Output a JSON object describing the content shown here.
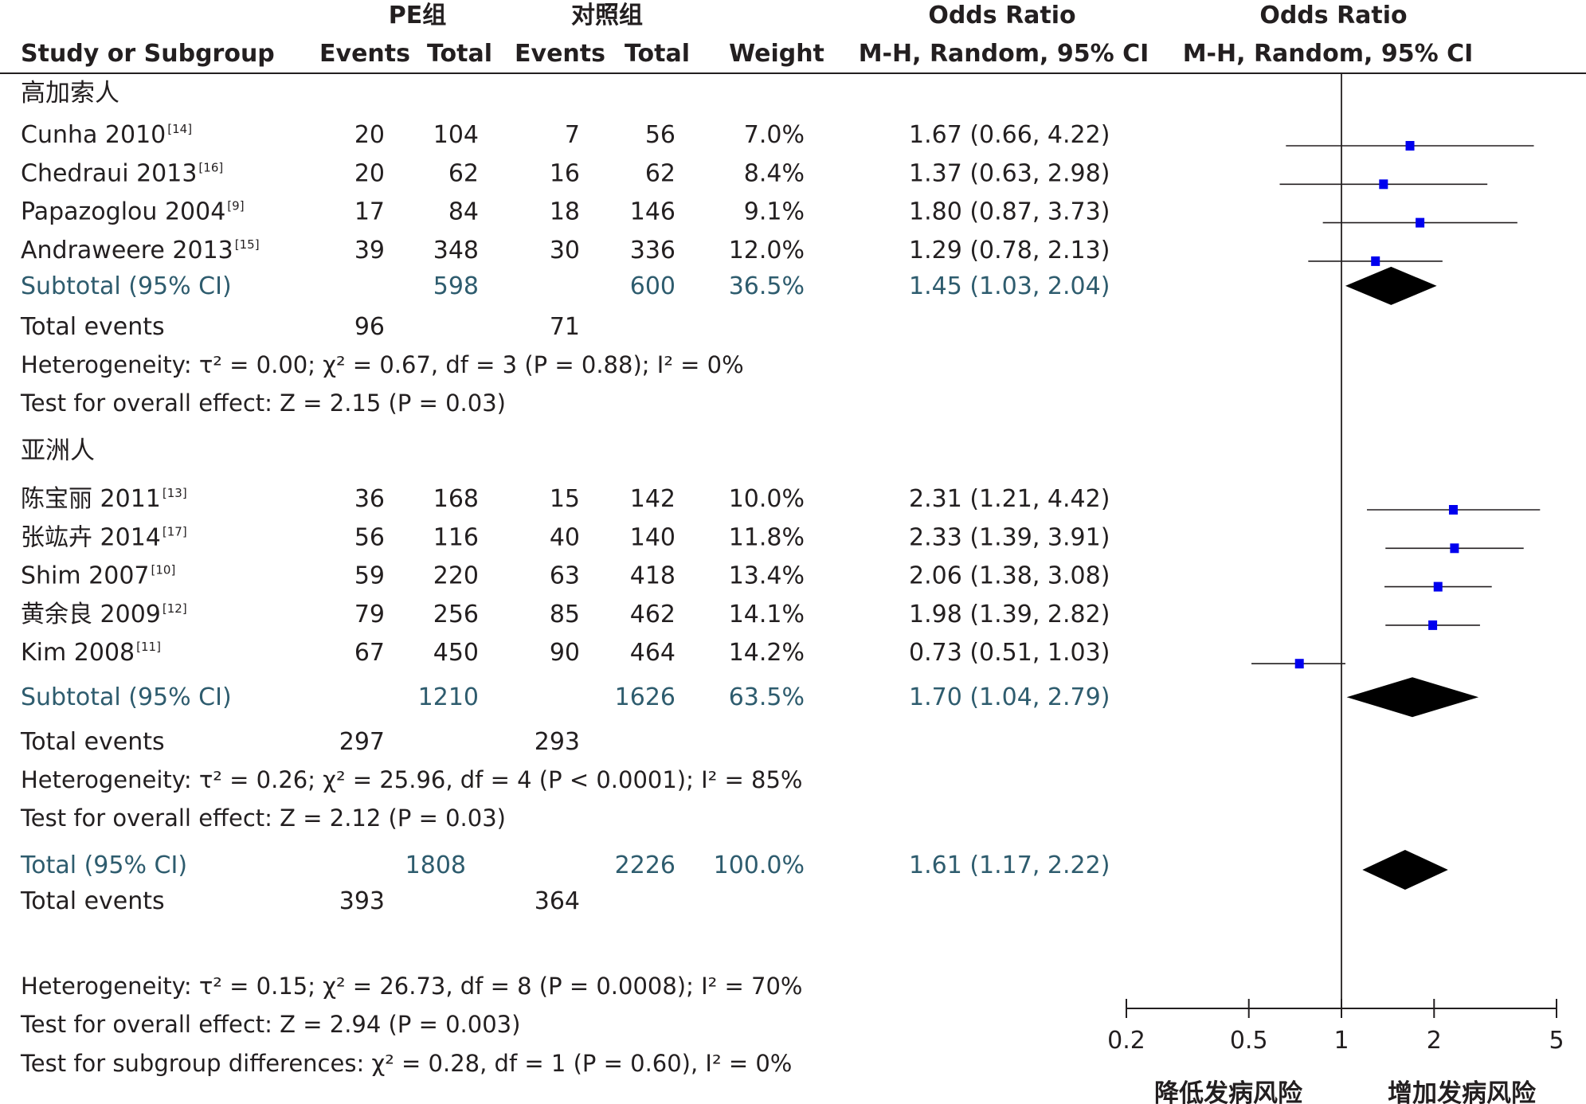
{
  "headers": {
    "group_pe": "PE组",
    "group_ctrl": "对照组",
    "or_title": "Odds Ratio",
    "plot_title": "Odds Ratio",
    "study_col": "Study or Subgroup",
    "events": "Events",
    "total": "Total",
    "weight": "Weight",
    "method": "M-H, Random, 95% CI",
    "plot_method": "M-H, Random, 95% CI"
  },
  "chart_data": {
    "type": "forest",
    "measure": "Odds Ratio (M-H, Random, 95% CI)",
    "x_scale": "log",
    "xlim": [
      0.2,
      5
    ],
    "ticks": [
      "0.2",
      "0.5",
      "1",
      "2",
      "5"
    ],
    "null_line": 1,
    "axis_left_label": "降低发病风险",
    "axis_right_label": "增加发病风险",
    "groups": [
      {
        "name": "高加索人",
        "studies": [
          {
            "name": "Cunha 2010",
            "ref": "[14]",
            "pe_events": "20",
            "pe_total": "104",
            "ctrl_events": "7",
            "ctrl_total": "56",
            "weight": "7.0%",
            "or_text": "1.67 (0.66, 4.22)",
            "or": 1.67,
            "lo": 0.66,
            "hi": 4.22
          },
          {
            "name": "Chedraui 2013",
            "ref": "[16]",
            "pe_events": "20",
            "pe_total": "62",
            "ctrl_events": "16",
            "ctrl_total": "62",
            "weight": "8.4%",
            "or_text": "1.37 (0.63, 2.98)",
            "or": 1.37,
            "lo": 0.63,
            "hi": 2.98
          },
          {
            "name": "Papazoglou 2004",
            "ref": "[9]",
            "pe_events": "17",
            "pe_total": "84",
            "ctrl_events": "18",
            "ctrl_total": "146",
            "weight": "9.1%",
            "or_text": "1.80 (0.87, 3.73)",
            "or": 1.8,
            "lo": 0.87,
            "hi": 3.73
          },
          {
            "name": "Andraweere 2013",
            "ref": "[15]",
            "pe_events": "39",
            "pe_total": "348",
            "ctrl_events": "30",
            "ctrl_total": "336",
            "weight": "12.0%",
            "or_text": "1.29 (0.78, 2.13)",
            "or": 1.29,
            "lo": 0.78,
            "hi": 2.13
          }
        ],
        "subtotal": {
          "label": "Subtotal (95% CI)",
          "pe_total": "598",
          "ctrl_total": "600",
          "weight": "36.5%",
          "or_text": "1.45 (1.03, 2.04)",
          "or": 1.45,
          "lo": 1.03,
          "hi": 2.04
        },
        "total_events": {
          "label": "Total events",
          "pe": "96",
          "ctrl": "71"
        },
        "heterogeneity": "Heterogeneity: τ² = 0.00; χ² = 0.67, df = 3 (P = 0.88); I² = 0%",
        "overall_effect": "Test for overall effect: Z = 2.15 (P = 0.03)"
      },
      {
        "name": "亚洲人",
        "studies": [
          {
            "name": "陈宝丽 2011",
            "ref": "[13]",
            "pe_events": "36",
            "pe_total": "168",
            "ctrl_events": "15",
            "ctrl_total": "142",
            "weight": "10.0%",
            "or_text": "2.31 (1.21, 4.42)",
            "or": 2.31,
            "lo": 1.21,
            "hi": 4.42
          },
          {
            "name": "张竑卉 2014",
            "ref": "[17]",
            "pe_events": "56",
            "pe_total": "116",
            "ctrl_events": "40",
            "ctrl_total": "140",
            "weight": "11.8%",
            "or_text": "2.33 (1.39, 3.91)",
            "or": 2.33,
            "lo": 1.39,
            "hi": 3.91
          },
          {
            "name": "Shim 2007",
            "ref": "[10]",
            "pe_events": "59",
            "pe_total": "220",
            "ctrl_events": "63",
            "ctrl_total": "418",
            "weight": "13.4%",
            "or_text": "2.06 (1.38, 3.08)",
            "or": 2.06,
            "lo": 1.38,
            "hi": 3.08
          },
          {
            "name": "黄余良 2009",
            "ref": "[12]",
            "pe_events": "79",
            "pe_total": "256",
            "ctrl_events": "85",
            "ctrl_total": "462",
            "weight": "14.1%",
            "or_text": "1.98 (1.39, 2.82)",
            "or": 1.98,
            "lo": 1.39,
            "hi": 2.82
          },
          {
            "name": "Kim 2008",
            "ref": "[11]",
            "pe_events": "67",
            "pe_total": "450",
            "ctrl_events": "90",
            "ctrl_total": "464",
            "weight": "14.2%",
            "or_text": "0.73 (0.51, 1.03)",
            "or": 0.73,
            "lo": 0.51,
            "hi": 1.03
          }
        ],
        "subtotal": {
          "label": "Subtotal (95% CI)",
          "pe_total": "1210",
          "ctrl_total": "1626",
          "weight": "63.5%",
          "or_text": "1.70 (1.04, 2.79)",
          "or": 1.7,
          "lo": 1.04,
          "hi": 2.79
        },
        "total_events": {
          "label": "Total events",
          "pe": "297",
          "ctrl": "293"
        },
        "heterogeneity": "Heterogeneity: τ² = 0.26; χ² = 25.96, df = 4 (P < 0.0001); I² = 85%",
        "overall_effect": "Test for overall effect: Z = 2.12 (P = 0.03)"
      }
    ],
    "overall": {
      "label": "Total (95% CI)",
      "pe_total": "1808",
      "ctrl_total": "2226",
      "weight": "100.0%",
      "or_text": "1.61 (1.17, 2.22)",
      "or": 1.61,
      "lo": 1.17,
      "hi": 2.22,
      "total_events": {
        "label": "Total events",
        "pe": "393",
        "ctrl": "364"
      },
      "heterogeneity": "Heterogeneity: τ² = 0.15; χ² = 26.73, df = 8 (P = 0.0008); I² = 70%",
      "overall_effect": "Test for overall effect: Z = 2.94 (P = 0.003)",
      "subgroup_diff": "Test for subgroup differences: χ² = 0.28, df = 1 (P = 0.60), I² = 0%"
    },
    "colors": {
      "text": "#231f20",
      "subtotal_text": "#2e5c6e",
      "marker": "#0000ee",
      "diamond": "#000000"
    }
  }
}
